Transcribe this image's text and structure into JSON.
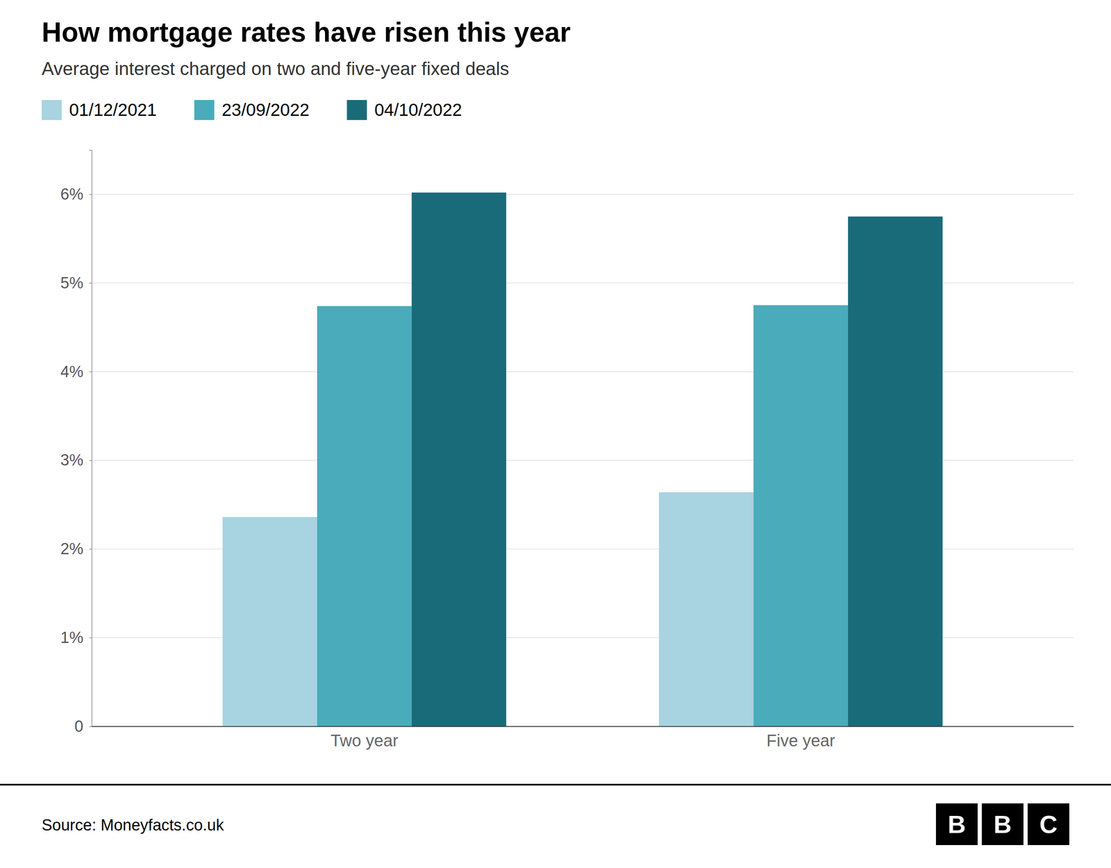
{
  "chart_data": {
    "type": "bar",
    "title": "How mortgage rates have risen this year",
    "subtitle": "Average interest charged on two and five-year fixed deals",
    "categories": [
      "Two year",
      "Five year"
    ],
    "series": [
      {
        "name": "01/12/2021",
        "color": "#a8d3e0",
        "values": [
          2.36,
          2.64
        ]
      },
      {
        "name": "23/09/2022",
        "color": "#4aabba",
        "values": [
          4.74,
          4.75
        ]
      },
      {
        "name": "04/10/2022",
        "color": "#1a6b7a",
        "values": [
          6.02,
          5.75
        ]
      }
    ],
    "ylim": [
      0,
      6.5
    ],
    "yticks": [
      0,
      {
        "value": 1,
        "label": "1%"
      },
      {
        "value": 2,
        "label": "2%"
      },
      {
        "value": 3,
        "label": "3%"
      },
      {
        "value": 4,
        "label": "4%"
      },
      {
        "value": 5,
        "label": "5%"
      },
      {
        "value": 6,
        "label": "6%"
      }
    ],
    "grid": true,
    "legend": "top-left",
    "source": "Source: Moneyfacts.co.uk",
    "logo": [
      "B",
      "B",
      "C"
    ]
  }
}
